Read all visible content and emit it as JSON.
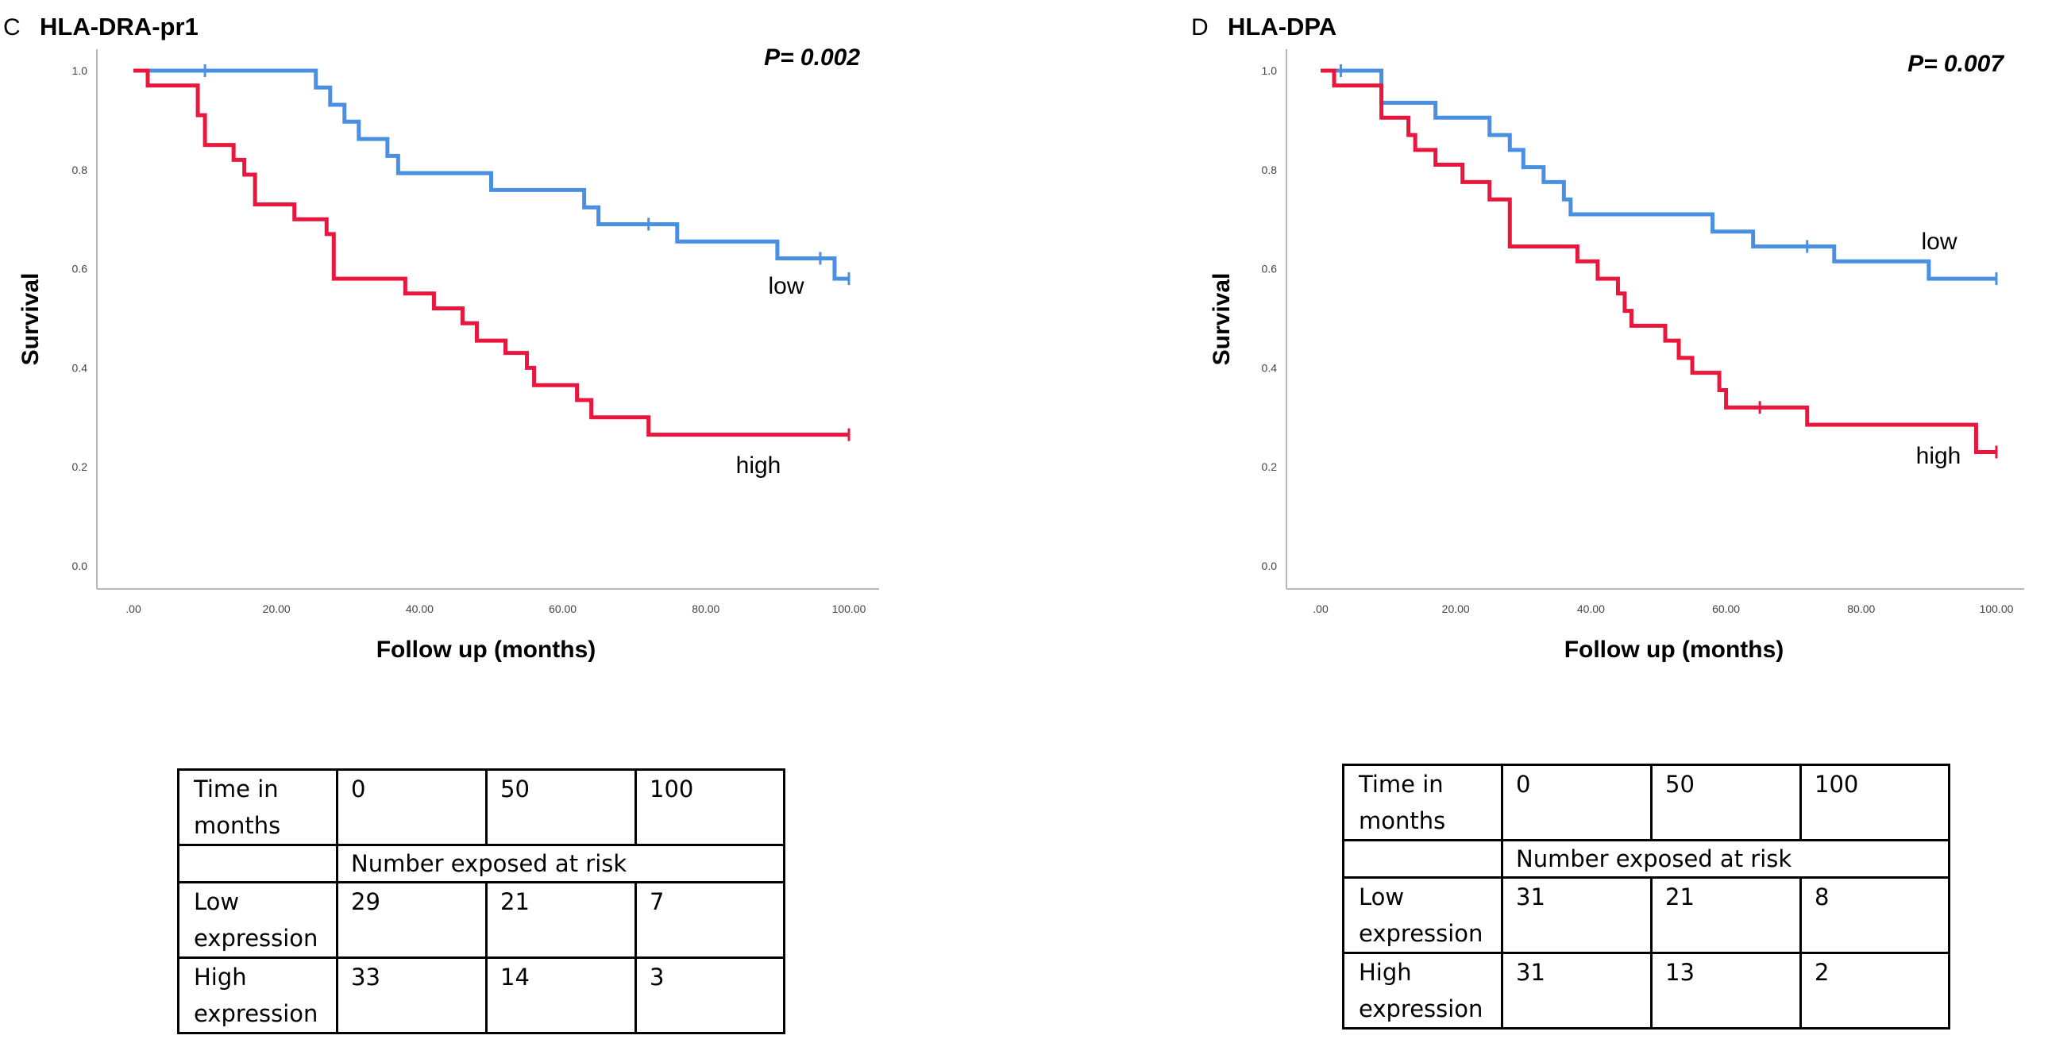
{
  "panels": [
    {
      "panel_letter": "C",
      "gene": "HLA-DRA-pr1",
      "p_value": "P= 0.002"
    },
    {
      "panel_letter": "D",
      "gene": "HLA-DPA",
      "p_value": "P= 0.007"
    }
  ],
  "chart_data": [
    {
      "type": "line",
      "subtype": "kaplan-meier step",
      "title": "HLA-DRA-pr1",
      "annotation": "P= 0.002",
      "xlabel": "Follow up (months)",
      "ylabel": "Survival",
      "xlim": [
        0,
        100
      ],
      "ylim": [
        0,
        1
      ],
      "x_ticks": [
        0,
        20,
        40,
        60,
        80,
        100
      ],
      "x_tick_labels": [
        ".00",
        "20.00",
        "40.00",
        "60.00",
        "80.00",
        "100.00"
      ],
      "y_ticks": [
        0,
        0.2,
        0.4,
        0.6,
        0.8,
        1.0
      ],
      "y_tick_labels": [
        "0.0",
        "0.2",
        "0.4",
        "0.6",
        "0.8",
        "1.0"
      ],
      "series": [
        {
          "name": "low",
          "color": "#4a90e2",
          "steps": [
            [
              0,
              1.0
            ],
            [
              25.5,
              0.966
            ],
            [
              27.5,
              0.931
            ],
            [
              29.5,
              0.897
            ],
            [
              31.5,
              0.862
            ],
            [
              35.5,
              0.828
            ],
            [
              37,
              0.793
            ],
            [
              50,
              0.759
            ],
            [
              63,
              0.724
            ],
            [
              65,
              0.69
            ],
            [
              76,
              0.655
            ],
            [
              90,
              0.621
            ],
            [
              98,
              0.58
            ]
          ],
          "end_x": 100,
          "censor_x": [
            10,
            72,
            96,
            100
          ]
        },
        {
          "name": "high",
          "color": "#e8173e",
          "steps": [
            [
              0,
              1.0
            ],
            [
              2,
              0.97
            ],
            [
              9,
              0.91
            ],
            [
              10,
              0.85
            ],
            [
              14,
              0.82
            ],
            [
              15.5,
              0.79
            ],
            [
              17,
              0.73
            ],
            [
              22.5,
              0.7
            ],
            [
              27,
              0.67
            ],
            [
              28,
              0.58
            ],
            [
              38,
              0.55
            ],
            [
              42,
              0.52
            ],
            [
              46,
              0.49
            ],
            [
              48,
              0.455
            ],
            [
              52,
              0.43
            ],
            [
              55,
              0.4
            ],
            [
              56,
              0.365
            ],
            [
              62,
              0.335
            ],
            [
              64,
              0.3
            ],
            [
              72,
              0.265
            ]
          ],
          "end_x": 100,
          "censor_x": [
            100
          ]
        }
      ]
    },
    {
      "type": "line",
      "subtype": "kaplan-meier step",
      "title": "HLA-DPA",
      "annotation": "P= 0.007",
      "xlabel": "Follow up (months)",
      "ylabel": "Survival",
      "xlim": [
        0,
        100
      ],
      "ylim": [
        0,
        1
      ],
      "x_ticks": [
        0,
        20,
        40,
        60,
        80,
        100
      ],
      "x_tick_labels": [
        ".00",
        "20.00",
        "40.00",
        "60.00",
        "80.00",
        "100.00"
      ],
      "y_ticks": [
        0,
        0.2,
        0.4,
        0.6,
        0.8,
        1.0
      ],
      "y_tick_labels": [
        "0.0",
        "0.2",
        "0.4",
        "0.6",
        "0.8",
        "1.0"
      ],
      "series": [
        {
          "name": "low",
          "color": "#4a90e2",
          "steps": [
            [
              0,
              1.0
            ],
            [
              9,
              0.935
            ],
            [
              17,
              0.905
            ],
            [
              25,
              0.87
            ],
            [
              28,
              0.84
            ],
            [
              30,
              0.805
            ],
            [
              33,
              0.775
            ],
            [
              36,
              0.74
            ],
            [
              37,
              0.71
            ],
            [
              58,
              0.675
            ],
            [
              64,
              0.645
            ],
            [
              76,
              0.615
            ],
            [
              90,
              0.58
            ]
          ],
          "end_x": 100,
          "censor_x": [
            3,
            72,
            100
          ]
        },
        {
          "name": "high",
          "color": "#e8173e",
          "steps": [
            [
              0,
              1.0
            ],
            [
              2,
              0.97
            ],
            [
              9,
              0.905
            ],
            [
              13,
              0.87
            ],
            [
              14,
              0.84
            ],
            [
              17,
              0.81
            ],
            [
              21,
              0.775
            ],
            [
              25,
              0.74
            ],
            [
              28,
              0.645
            ],
            [
              38,
              0.615
            ],
            [
              41,
              0.58
            ],
            [
              44,
              0.55
            ],
            [
              45,
              0.515
            ],
            [
              46,
              0.485
            ],
            [
              51,
              0.455
            ],
            [
              53,
              0.42
            ],
            [
              55,
              0.39
            ],
            [
              59,
              0.355
            ],
            [
              60,
              0.32
            ],
            [
              72,
              0.285
            ],
            [
              97,
              0.23
            ]
          ],
          "end_x": 100,
          "censor_x": [
            65,
            100
          ]
        }
      ]
    }
  ],
  "risk_tables": [
    {
      "header": [
        "Time in months",
        "0",
        "50",
        "100"
      ],
      "subheader": "Number exposed at risk",
      "rows": [
        {
          "label": "Low expression",
          "values": [
            "29",
            "21",
            "7"
          ]
        },
        {
          "label": "High expression",
          "values": [
            "33",
            "14",
            "3"
          ]
        }
      ]
    },
    {
      "header": [
        "Time in months",
        "0",
        "50",
        "100"
      ],
      "subheader": "Number exposed at risk",
      "rows": [
        {
          "label": "Low expression",
          "values": [
            "31",
            "21",
            "8"
          ]
        },
        {
          "label": "High expression",
          "values": [
            "31",
            "13",
            "2"
          ]
        }
      ]
    }
  ]
}
